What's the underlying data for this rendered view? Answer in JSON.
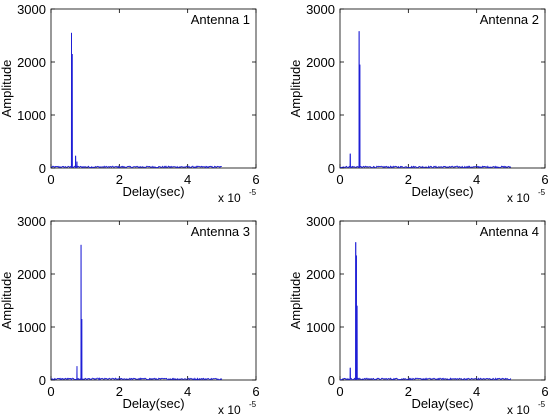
{
  "colors": {
    "series": "#1f1fd6",
    "axis": "#000000",
    "background": "#ffffff"
  },
  "chart_data": [
    {
      "type": "line",
      "title": "Antenna 1",
      "xlabel": "Delay(sec)",
      "ylabel": "Amplitude",
      "x_exponent_label": "x 10",
      "x_exponent_power": "-5",
      "xlim": [
        0,
        6
      ],
      "ylim": [
        0,
        3000
      ],
      "x_ticks": [
        "0",
        "2",
        "4",
        "6"
      ],
      "y_ticks": [
        "0",
        "1000",
        "2000",
        "3000"
      ],
      "noise_floor": 20,
      "series_end_x": 5.0,
      "peaks": [
        {
          "x": 0.6,
          "y": 2550
        },
        {
          "x": 0.62,
          "y": 2150
        },
        {
          "x": 0.72,
          "y": 230
        },
        {
          "x": 0.76,
          "y": 120
        }
      ]
    },
    {
      "type": "line",
      "title": "Antenna 2",
      "xlabel": "Delay(sec)",
      "ylabel": "Amplitude",
      "x_exponent_label": "x 10",
      "x_exponent_power": "-5",
      "xlim": [
        0,
        6
      ],
      "ylim": [
        0,
        3000
      ],
      "x_ticks": [
        "0",
        "2",
        "4",
        "6"
      ],
      "y_ticks": [
        "0",
        "1000",
        "2000",
        "3000"
      ],
      "noise_floor": 20,
      "series_end_x": 5.0,
      "peaks": [
        {
          "x": 0.3,
          "y": 270
        },
        {
          "x": 0.56,
          "y": 2580
        },
        {
          "x": 0.58,
          "y": 1950
        }
      ]
    },
    {
      "type": "line",
      "title": "Antenna 3",
      "xlabel": "Delay(sec)",
      "ylabel": "Amplitude",
      "x_exponent_label": "x 10",
      "x_exponent_power": "-5",
      "xlim": [
        0,
        6
      ],
      "ylim": [
        0,
        3000
      ],
      "x_ticks": [
        "0",
        "2",
        "4",
        "6"
      ],
      "y_ticks": [
        "0",
        "1000",
        "2000",
        "3000"
      ],
      "noise_floor": 20,
      "series_end_x": 5.0,
      "peaks": [
        {
          "x": 0.76,
          "y": 260
        },
        {
          "x": 0.88,
          "y": 2550
        },
        {
          "x": 0.9,
          "y": 1150
        }
      ]
    },
    {
      "type": "line",
      "title": "Antenna 4",
      "xlabel": "Delay(sec)",
      "ylabel": "Amplitude",
      "x_exponent_label": "x 10",
      "x_exponent_power": "-5",
      "xlim": [
        0,
        6
      ],
      "ylim": [
        0,
        3000
      ],
      "x_ticks": [
        "0",
        "2",
        "4",
        "6"
      ],
      "y_ticks": [
        "0",
        "1000",
        "2000",
        "3000"
      ],
      "noise_floor": 20,
      "series_end_x": 5.0,
      "peaks": [
        {
          "x": 0.3,
          "y": 230
        },
        {
          "x": 0.46,
          "y": 2600
        },
        {
          "x": 0.48,
          "y": 2350
        },
        {
          "x": 0.5,
          "y": 1400
        }
      ]
    }
  ]
}
